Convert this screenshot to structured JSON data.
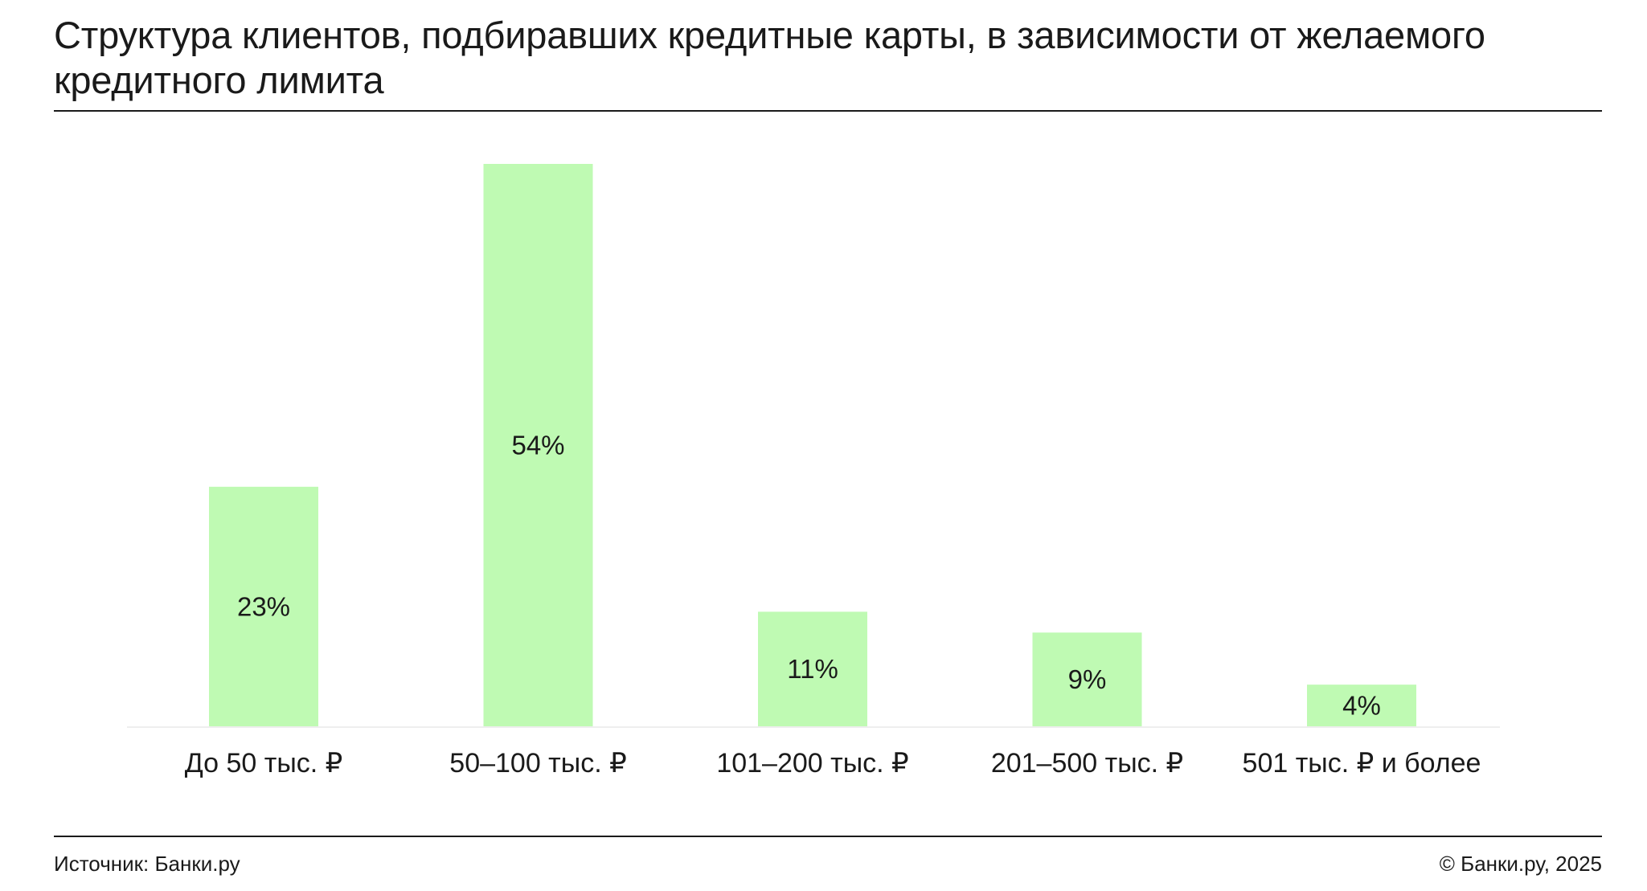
{
  "title": "Структура клиентов, подбиравших кредитные карты, в зависимости от желаемого кредитного лимита",
  "footer": {
    "source": "Источник: Банки.ру",
    "copyright": "© Банки.ру, 2025"
  },
  "colors": {
    "bar": "#bffab3",
    "text": "#1a1a1a",
    "baseline": "#eeeeee"
  },
  "chart_data": {
    "type": "bar",
    "categories": [
      "До 50 тыс. ₽",
      "50–100 тыс. ₽",
      "101–200 тыс. ₽",
      "201–500 тыс. ₽",
      "501 тыс. ₽ и более"
    ],
    "values": [
      23,
      54,
      11,
      9,
      4
    ],
    "value_labels": [
      "23%",
      "54%",
      "11%",
      "9%",
      "4%"
    ],
    "unit": "%",
    "ylim": [
      0,
      54
    ],
    "grid": false,
    "legend": "none"
  }
}
